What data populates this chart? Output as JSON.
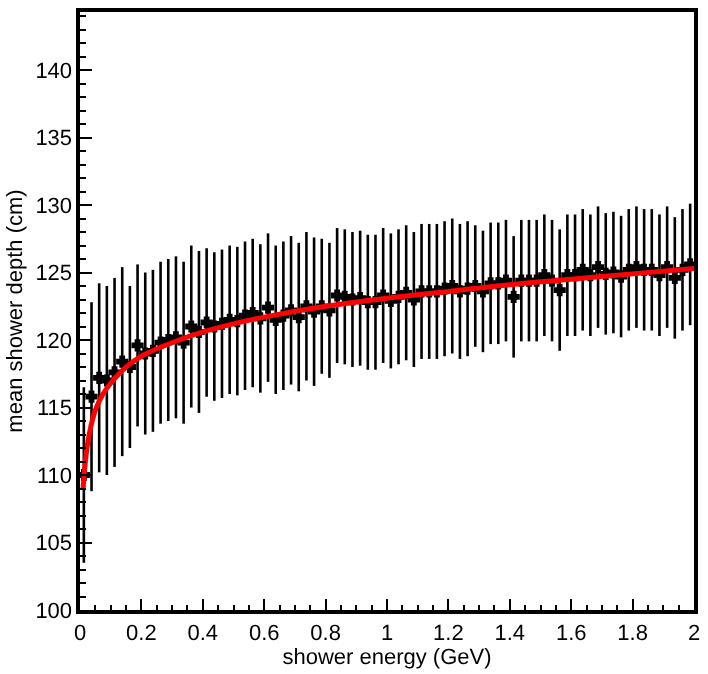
{
  "chart_data": {
    "type": "scatter",
    "xlabel": "shower energy (GeV)",
    "ylabel": "mean shower depth (cm)",
    "xlim": [
      0,
      2
    ],
    "ylim": [
      100,
      144.3
    ],
    "xticks": [
      0,
      0.2,
      0.4,
      0.6,
      0.8,
      1,
      1.2,
      1.4,
      1.6,
      1.8,
      2
    ],
    "yticks": [
      100,
      105,
      110,
      115,
      120,
      125,
      130,
      135,
      140
    ],
    "series": [
      {
        "color": "#000000",
        "marker": "cross",
        "x": [
          0.0125,
          0.0375,
          0.0625,
          0.0875,
          0.1125,
          0.1375,
          0.1625,
          0.1875,
          0.2125,
          0.2375,
          0.2625,
          0.2875,
          0.3125,
          0.3375,
          0.3625,
          0.3875,
          0.4125,
          0.4375,
          0.4625,
          0.4875,
          0.5125,
          0.5375,
          0.5625,
          0.5875,
          0.6125,
          0.6375,
          0.6625,
          0.6875,
          0.7125,
          0.7375,
          0.7625,
          0.7875,
          0.8125,
          0.8375,
          0.8625,
          0.8875,
          0.9125,
          0.9375,
          0.9625,
          0.9875,
          1.0125,
          1.0375,
          1.0625,
          1.0875,
          1.1125,
          1.1375,
          1.1625,
          1.1875,
          1.2125,
          1.2375,
          1.2625,
          1.2875,
          1.3125,
          1.3375,
          1.3625,
          1.3875,
          1.4125,
          1.4375,
          1.4625,
          1.4875,
          1.5125,
          1.5375,
          1.5625,
          1.5875,
          1.6125,
          1.6375,
          1.6625,
          1.6875,
          1.7125,
          1.7375,
          1.7625,
          1.7875,
          1.8125,
          1.8375,
          1.8625,
          1.8875,
          1.9125,
          1.9375,
          1.9625,
          1.9875
        ],
        "values": [
          110,
          115.8,
          117.2,
          117,
          117.6,
          118.4,
          118,
          119.6,
          119,
          119.2,
          119.8,
          120,
          120.2,
          119.8,
          121,
          120.6,
          121.3,
          121,
          121.2,
          121.5,
          121.4,
          121.8,
          122,
          121.6,
          122.4,
          121.5,
          121.8,
          122.2,
          121.7,
          122.5,
          122.1,
          122.5,
          122.2,
          123.3,
          123.2,
          123,
          123.1,
          122.8,
          122.8,
          123.3,
          122.9,
          123.2,
          123.5,
          123,
          123.6,
          123.6,
          123.6,
          123.8,
          124,
          123.6,
          123.8,
          124,
          123.6,
          124.2,
          124.2,
          124.4,
          123.2,
          124.4,
          124.4,
          124.4,
          124.8,
          124.4,
          123.7,
          124.8,
          124.8,
          125.2,
          124.8,
          125.4,
          124.9,
          125,
          124.7,
          125.2,
          125.4,
          125.2,
          125.2,
          124.8,
          125.4,
          124.6,
          125.2,
          125.6
        ],
        "errors": [
          6.5,
          7,
          7,
          7,
          7,
          7,
          6,
          6,
          6,
          6,
          6,
          6,
          6,
          6,
          6,
          6,
          5.5,
          5.5,
          5.5,
          5.5,
          5.5,
          5.5,
          5.5,
          5.5,
          5.5,
          5.5,
          5.5,
          5.5,
          5.5,
          5.5,
          5.5,
          5,
          5,
          5,
          5,
          5,
          5,
          5,
          5,
          5,
          5,
          5,
          5,
          5,
          5,
          5,
          5,
          5,
          5,
          5,
          5,
          4.5,
          4.5,
          4.5,
          4.5,
          4.5,
          4.5,
          4.5,
          4.5,
          4.5,
          4.5,
          4.5,
          4.5,
          4.5,
          4.5,
          4.5,
          4.5,
          4.5,
          4.5,
          4.5,
          4.5,
          4.5,
          4.5,
          4.5,
          4.5,
          4.5,
          4.5,
          4.5,
          4.5,
          4.5
        ],
        "xerrors": [
          0.0125,
          0.0125,
          0.0125,
          0.0125,
          0.0125,
          0.0125,
          0.0125,
          0.0125,
          0.0125,
          0.0125,
          0.0125,
          0.0125,
          0.0125,
          0.0125,
          0.0125,
          0.0125,
          0.0125,
          0.0125,
          0.0125,
          0.0125,
          0.0125,
          0.0125,
          0.0125,
          0.0125,
          0.0125,
          0.0125,
          0.0125,
          0.0125,
          0.0125,
          0.0125,
          0.0125,
          0.0125,
          0.0125,
          0.0125,
          0.0125,
          0.0125,
          0.0125,
          0.0125,
          0.0125,
          0.0125,
          0.0125,
          0.0125,
          0.0125,
          0.0125,
          0.0125,
          0.0125,
          0.0125,
          0.0125,
          0.0125,
          0.0125,
          0.0125,
          0.0125,
          0.0125,
          0.0125,
          0.0125,
          0.0125,
          0.0125,
          0.0125,
          0.0125,
          0.0125,
          0.0125,
          0.0125,
          0.0125,
          0.0125,
          0.0125,
          0.0125,
          0.0125,
          0.0125,
          0.0125,
          0.0125,
          0.0125,
          0.0125,
          0.0125,
          0.0125,
          0.0125,
          0.0125,
          0.0125,
          0.0125,
          0.0125,
          0.0125
        ]
      },
      {
        "type": "line",
        "color": "#ff0000",
        "line_style": "solid",
        "marker": "none",
        "x": [
          0.01,
          0.02,
          0.03,
          0.05,
          0.075,
          0.1,
          0.15,
          0.2,
          0.3,
          0.4,
          0.5,
          0.6,
          0.8,
          1.0,
          1.2,
          1.4,
          1.6,
          1.8,
          2.0
        ],
        "values": [
          109,
          111.5,
          113,
          114.8,
          116,
          116.8,
          118,
          118.8,
          119.8,
          120.6,
          121.2,
          121.7,
          122.5,
          123.1,
          123.6,
          124.1,
          124.5,
          124.9,
          125.3
        ]
      }
    ]
  }
}
